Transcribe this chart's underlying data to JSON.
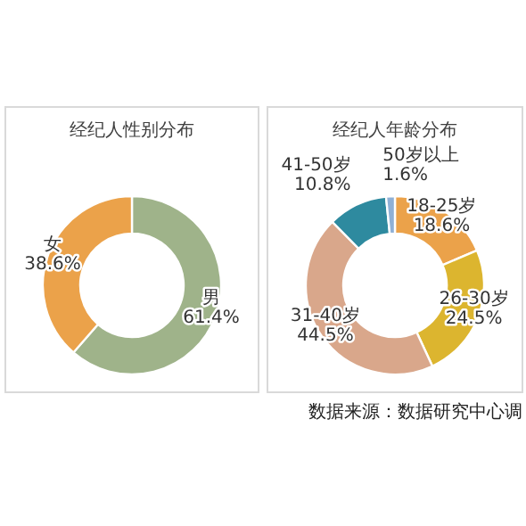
{
  "chart_data": [
    {
      "type": "donut",
      "title": "经纪人性别分布",
      "categories": [
        "男",
        "女"
      ],
      "values": [
        61.4,
        38.6
      ],
      "colors": [
        "#9fb38a",
        "#eba24a"
      ],
      "value_labels": [
        "61.4%",
        "38.6%"
      ]
    },
    {
      "type": "donut",
      "title": "经纪人年龄分布",
      "categories": [
        "18-25岁",
        "26-30岁",
        "31-40岁",
        "41-50岁",
        "50岁以上"
      ],
      "values": [
        18.6,
        24.5,
        44.5,
        10.8,
        1.6
      ],
      "colors": [
        "#eba24a",
        "#dcb52f",
        "#d9a78b",
        "#2e8a9f",
        "#8fb0d6"
      ],
      "value_labels": [
        "18.6%",
        "24.5%",
        "44.5%",
        "10.8%",
        "1.6%"
      ],
      "annotations": [
        "数据来源：数据研究中心调"
      ]
    }
  ]
}
